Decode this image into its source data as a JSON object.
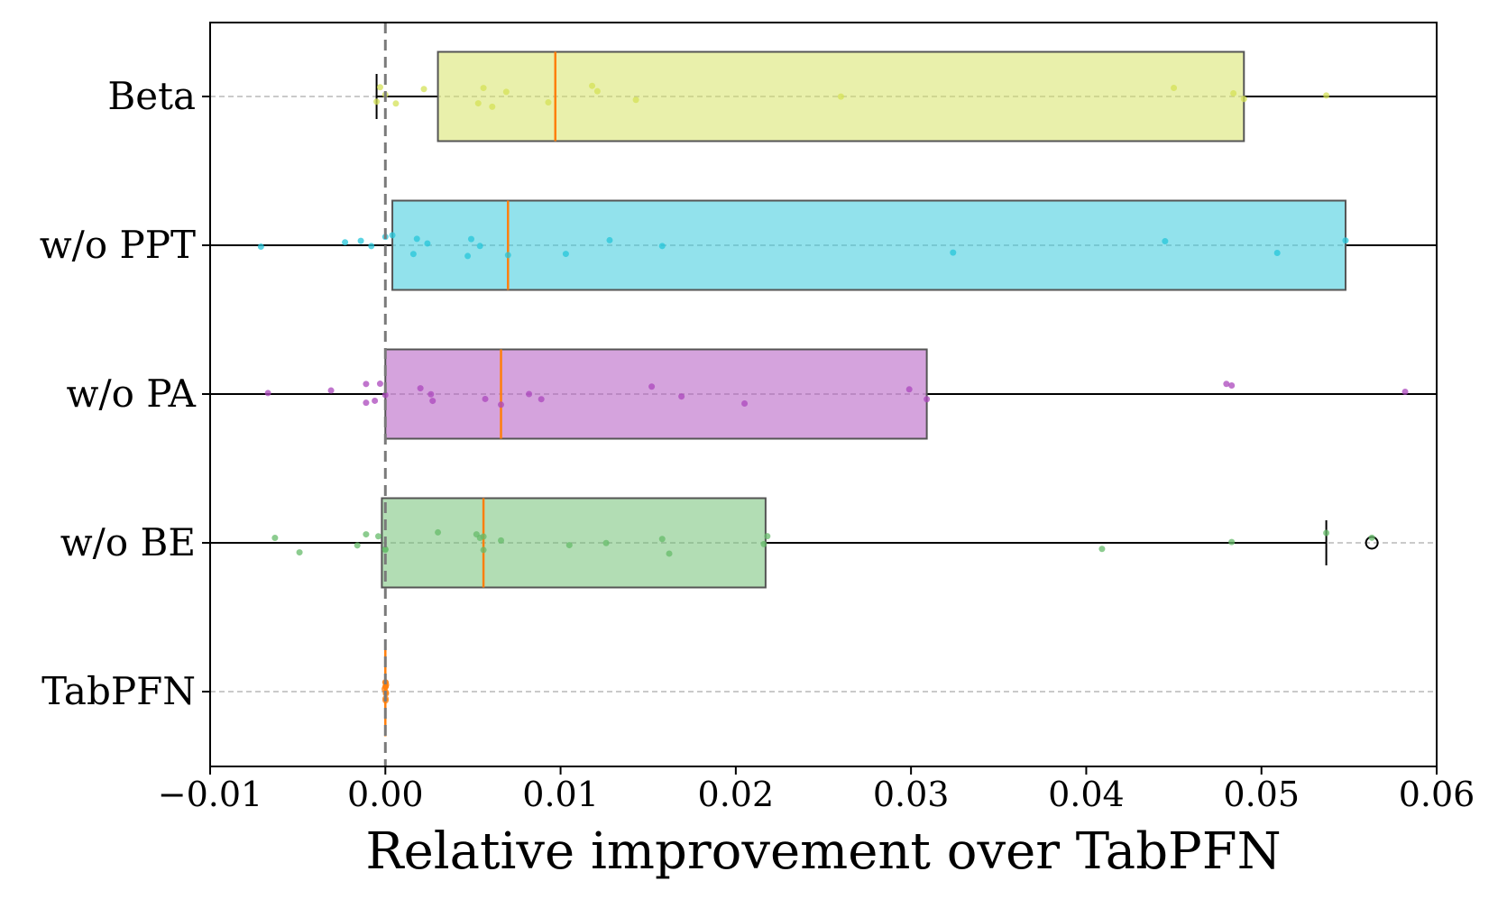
{
  "chart_data": {
    "type": "box",
    "orientation": "horizontal",
    "xlabel": "Relative improvement over TabPFN",
    "xlim": [
      -0.01,
      0.06
    ],
    "xticks": [
      -0.01,
      0.0,
      0.01,
      0.02,
      0.03,
      0.04,
      0.05,
      0.06
    ],
    "xtick_labels": [
      "−0.01",
      "0.00",
      "0.01",
      "0.02",
      "0.03",
      "0.04",
      "0.05",
      "0.06"
    ],
    "reference_line_x": 0.0,
    "grid": false,
    "categories": [
      "Beta",
      "w/o PPT",
      "w/o PA",
      "w/o BE",
      "TabPFN"
    ],
    "boxes": [
      {
        "category": "Beta",
        "color": "#d4e157",
        "q1": 0.003,
        "median": 0.0097,
        "q3": 0.049,
        "whisker_low": -0.0005,
        "whisker_high": 0.06,
        "outliers": [],
        "points": [
          -0.0005,
          -0.0003,
          0.0,
          0.0006,
          0.0022,
          0.0053,
          0.0056,
          0.0061,
          0.0069,
          0.0093,
          0.0118,
          0.0121,
          0.0143,
          0.026,
          0.045,
          0.0484,
          0.049,
          0.0537
        ]
      },
      {
        "category": "w/o PPT",
        "color": "#26c6da",
        "q1": 0.0004,
        "median": 0.007,
        "q3": 0.0548,
        "whisker_low": -0.01,
        "whisker_high": 0.06,
        "outliers": [],
        "points": [
          -0.0071,
          -0.0023,
          -0.0014,
          -0.0008,
          0.0,
          0.0004,
          0.0016,
          0.0018,
          0.0024,
          0.0047,
          0.0049,
          0.0054,
          0.007,
          0.0103,
          0.0128,
          0.0158,
          0.0324,
          0.0445,
          0.0509,
          0.0548
        ]
      },
      {
        "category": "w/o PA",
        "color": "#ab47bc",
        "q1": 0.0,
        "median": 0.0066,
        "q3": 0.0309,
        "whisker_low": -0.01,
        "whisker_high": 0.06,
        "outliers": [],
        "points": [
          -0.0067,
          -0.0031,
          -0.0011,
          -0.0011,
          -0.0006,
          -0.0003,
          0.0,
          0.002,
          0.0026,
          0.0027,
          0.0057,
          0.0066,
          0.0082,
          0.0089,
          0.0152,
          0.0169,
          0.0205,
          0.0299,
          0.0309,
          0.048,
          0.0483,
          0.0582
        ]
      },
      {
        "category": "w/o BE",
        "color": "#66bb6a",
        "q1": -0.0002,
        "median": 0.0056,
        "q3": 0.0217,
        "whisker_low": -0.01,
        "whisker_high": 0.0537,
        "outliers": [
          0.0563
        ],
        "points": [
          -0.0063,
          -0.0049,
          -0.0016,
          -0.0011,
          -0.0004,
          0.0,
          0.0,
          0.003,
          0.0052,
          0.0054,
          0.0056,
          0.0056,
          0.0066,
          0.0105,
          0.0126,
          0.0158,
          0.0162,
          0.0216,
          0.0218,
          0.0409,
          0.0483,
          0.0537,
          0.0563
        ]
      },
      {
        "category": "TabPFN",
        "color": "#ff7f0e",
        "q1": 0.0,
        "median": 0.0,
        "q3": 0.0,
        "whisker_low": 0.0,
        "whisker_high": 0.0,
        "outliers": [],
        "points": [
          0.0,
          0.0,
          0.0,
          0.0,
          0.0,
          0.0,
          0.0,
          0.0,
          0.0,
          0.0
        ]
      }
    ],
    "median_color": "#ff7f0e",
    "box_edge_color": "#555555"
  }
}
